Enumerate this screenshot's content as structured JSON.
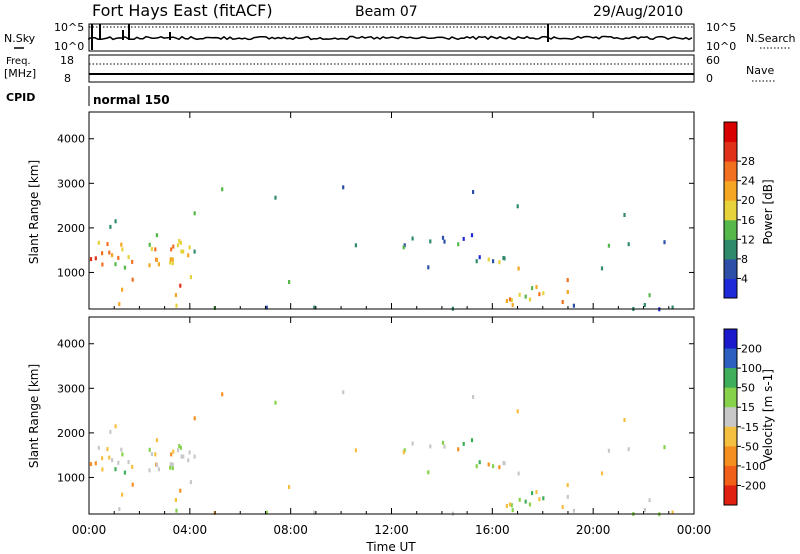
{
  "header": {
    "station": "Fort Hays East (fitACF)",
    "beam": "Beam 07",
    "date": "29/Aug/2010"
  },
  "noise_panel": {
    "left_label": "N.Sky",
    "right_label": "N.Search",
    "left_ticks": [
      "10^5",
      "10^0"
    ],
    "right_ticks": [
      "10^5",
      "10^0"
    ]
  },
  "freq_panel": {
    "left_label_1": "Freq.",
    "left_label_2": "[MHz]",
    "right_label": "Nave",
    "left_ticks": [
      "18",
      "8"
    ],
    "right_ticks": [
      "60",
      "0"
    ]
  },
  "cpid": {
    "label": "CPID",
    "value": "normal 150"
  },
  "chart_data": [
    {
      "type": "heatmap",
      "name": "Power",
      "ylabel": "Slant Range [km]",
      "ylim": [
        180,
        4600
      ],
      "yticks": [
        "1000",
        "2000",
        "3000",
        "4000"
      ],
      "xticks": [
        "00:00",
        "04:00",
        "08:00",
        "12:00",
        "16:00",
        "20:00",
        "00:00"
      ],
      "colorbar": {
        "label": "Power [dB]",
        "ticks": [
          "4",
          "8",
          "12",
          "16",
          "20",
          "24",
          "28"
        ],
        "colors": [
          "#1e2ad8",
          "#2d4fa8",
          "#2e8a6a",
          "#56b84a",
          "#e6d23a",
          "#f5a623",
          "#f07020",
          "#e03018",
          "#d80000"
        ]
      }
    },
    {
      "type": "heatmap",
      "name": "Velocity",
      "ylabel": "Slant Range [km]",
      "xlabel": "Time UT",
      "ylim": [
        180,
        4600
      ],
      "yticks": [
        "1000",
        "2000",
        "3000",
        "4000"
      ],
      "xticks": [
        "00:00",
        "04:00",
        "08:00",
        "12:00",
        "16:00",
        "20:00",
        "00:00"
      ],
      "colorbar": {
        "label": "Velocity [m s-1]",
        "ticks": [
          "200",
          "100",
          "50",
          "15",
          "-15",
          "-50",
          "-100",
          "-200"
        ],
        "colors": [
          "#1a1acc",
          "#2d5fc0",
          "#3fae5a",
          "#86d24a",
          "#c8c8c8",
          "#f5c040",
          "#f59020",
          "#f06018",
          "#e02010"
        ]
      }
    }
  ]
}
